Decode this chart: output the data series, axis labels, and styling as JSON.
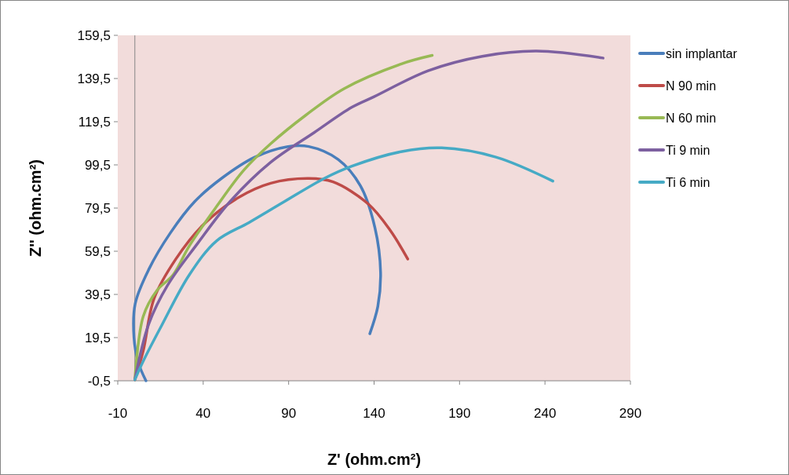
{
  "chart_data": {
    "type": "line",
    "xlabel": "Z' (ohm.cm²)",
    "ylabel": "Z'' (ohm.cm²)",
    "xlim": [
      -10,
      290
    ],
    "xticks": [
      -10,
      40,
      90,
      140,
      190,
      240,
      290
    ],
    "ylim": [
      -0.5,
      159.5
    ],
    "yticks": [
      {
        "value": -0.5,
        "label": "-0,5"
      },
      {
        "value": 19.5,
        "label": "19,5"
      },
      {
        "value": 39.5,
        "label": "39,5"
      },
      {
        "value": 59.5,
        "label": "59,5"
      },
      {
        "value": 79.5,
        "label": "79,5"
      },
      {
        "value": 99.5,
        "label": "99,5"
      },
      {
        "value": 119.5,
        "label": "119,5"
      },
      {
        "value": 139.5,
        "label": "139,5"
      },
      {
        "value": 159.5,
        "label": "159,5"
      }
    ],
    "grid": false,
    "legend": "right",
    "marker": "none",
    "line_style": "solid",
    "series": [
      {
        "name": "sin implantar",
        "color": "#4a7ebb",
        "x": [
          6.5,
          2,
          -0.5,
          0.2,
          8.1,
          20.8,
          35,
          51,
          70,
          89,
          101.8,
          119,
          132,
          140.5,
          143.8,
          142.2,
          137.5
        ],
        "values": [
          -0.5,
          8,
          19.5,
          35.2,
          51,
          68,
          82.5,
          93.4,
          103,
          107.9,
          108,
          102,
          89.8,
          70.4,
          49.8,
          34,
          21.3
        ]
      },
      {
        "name": "N 90 min",
        "color": "#be4b48",
        "x": [
          0,
          4.9,
          11.3,
          24,
          39.8,
          60.5,
          79.5,
          101.8,
          116,
          136.7,
          149.4,
          159.7
        ],
        "values": [
          0,
          13.4,
          37.7,
          55.9,
          71.6,
          84.3,
          91,
          93.2,
          91.6,
          81.3,
          69.2,
          55.9
        ]
      },
      {
        "name": "N 60 min",
        "color": "#98b954",
        "x": [
          0,
          4.9,
          12.9,
          22.4,
          31.9,
          47.8,
          63.7,
          79.5,
          100,
          122.4,
          155.7,
          174
        ],
        "values": [
          0,
          29.3,
          41.3,
          48.6,
          62,
          80.2,
          97,
          109.3,
          122.5,
          134.8,
          146.2,
          150.2
        ]
      },
      {
        "name": "Ti 9 min",
        "color": "#7d60a0",
        "x": [
          0,
          8.1,
          19.2,
          36.7,
          55.7,
          79.5,
          105,
          127,
          139.8,
          171.6,
          203.3,
          235,
          274
        ],
        "values": [
          0,
          25.7,
          43.8,
          63.1,
          82.5,
          100.7,
          114.5,
          126.2,
          131,
          143.1,
          149.8,
          152.2,
          149
        ]
      },
      {
        "name": "Ti 6 min",
        "color": "#46aac5",
        "x": [
          0,
          4.9,
          16,
          31.9,
          47.8,
          66.8,
          87.5,
          111.3,
          127,
          155.7,
          179.5,
          211.3,
          244.6
        ],
        "values": [
          0,
          8.6,
          25.6,
          48.6,
          64.3,
          72.8,
          82.5,
          93.4,
          98.9,
          105.6,
          107.4,
          103.1,
          92
        ]
      }
    ]
  }
}
